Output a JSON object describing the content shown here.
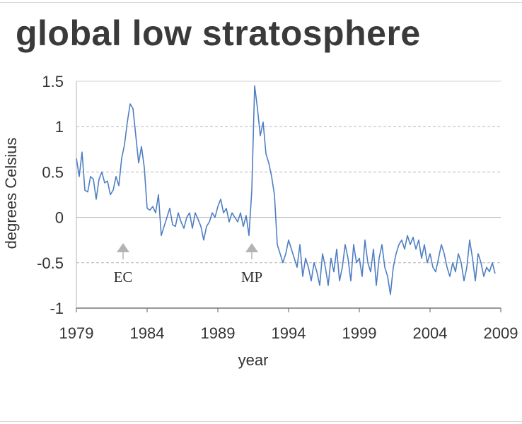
{
  "title": "global low stratosphere",
  "colors": {
    "series": "#4f7fc3",
    "grid": "#b5b5b5",
    "axis": "#777777",
    "marker": "#b3b3b3"
  },
  "chart_data": {
    "type": "line",
    "title": "global low stratosphere",
    "xlabel": "year",
    "ylabel": "degrees Celsius",
    "xlim": [
      1979,
      2009
    ],
    "ylim": [
      -1,
      1.5
    ],
    "x_ticks": [
      "1979",
      "1984",
      "1989",
      "1994",
      "1999",
      "2004",
      "2009"
    ],
    "y_ticks": [
      "1.5",
      "1",
      "0.5",
      "0",
      "-0.5",
      "-1"
    ],
    "grid": "horizontal dashed",
    "annotations": [
      {
        "label": "EC",
        "x": 1982.3
      },
      {
        "label": "MP",
        "x": 1991.4
      }
    ],
    "series": [
      {
        "x": [
          1979.0,
          1979.2,
          1979.4,
          1979.6,
          1979.8,
          1980.0,
          1980.2,
          1980.4,
          1980.6,
          1980.8,
          1981.0,
          1981.2,
          1981.4,
          1981.6,
          1981.8,
          1982.0,
          1982.2,
          1982.4,
          1982.6,
          1982.8,
          1983.0,
          1983.2,
          1983.4,
          1983.6,
          1983.8,
          1984.0,
          1984.2,
          1984.4,
          1984.6,
          1984.8,
          1985.0,
          1985.2,
          1985.4,
          1985.6,
          1985.8,
          1986.0,
          1986.2,
          1986.4,
          1986.6,
          1986.8,
          1987.0,
          1987.2,
          1987.4,
          1987.6,
          1987.8,
          1988.0,
          1988.2,
          1988.4,
          1988.6,
          1988.8,
          1989.0,
          1989.2,
          1989.4,
          1989.6,
          1989.8,
          1990.0,
          1990.2,
          1990.4,
          1990.6,
          1990.8,
          1991.0,
          1991.2,
          1991.4,
          1991.6,
          1991.8,
          1992.0,
          1992.2,
          1992.4,
          1992.6,
          1992.8,
          1993.0,
          1993.2,
          1993.4,
          1993.6,
          1993.8,
          1994.0,
          1994.2,
          1994.4,
          1994.6,
          1994.8,
          1995.0,
          1995.2,
          1995.4,
          1995.6,
          1995.8,
          1996.0,
          1996.2,
          1996.4,
          1996.6,
          1996.8,
          1997.0,
          1997.2,
          1997.4,
          1997.6,
          1997.8,
          1998.0,
          1998.2,
          1998.4,
          1998.6,
          1998.8,
          1999.0,
          1999.2,
          1999.4,
          1999.6,
          1999.8,
          2000.0,
          2000.2,
          2000.4,
          2000.6,
          2000.8,
          2001.0,
          2001.2,
          2001.4,
          2001.6,
          2001.8,
          2002.0,
          2002.2,
          2002.4,
          2002.6,
          2002.8,
          2003.0,
          2003.2,
          2003.4,
          2003.6,
          2003.8,
          2004.0,
          2004.2,
          2004.4,
          2004.6,
          2004.8,
          2005.0,
          2005.2,
          2005.4,
          2005.6,
          2005.8,
          2006.0,
          2006.2,
          2006.4,
          2006.6,
          2006.8,
          2007.0,
          2007.2,
          2007.4,
          2007.6,
          2007.8,
          2008.0,
          2008.2,
          2008.4,
          2008.6
        ],
        "y": [
          0.65,
          0.45,
          0.72,
          0.3,
          0.28,
          0.45,
          0.42,
          0.2,
          0.42,
          0.5,
          0.38,
          0.4,
          0.25,
          0.3,
          0.45,
          0.35,
          0.65,
          0.8,
          1.05,
          1.25,
          1.2,
          0.9,
          0.6,
          0.78,
          0.55,
          0.1,
          0.08,
          0.12,
          0.05,
          0.25,
          -0.2,
          -0.1,
          0.0,
          0.1,
          -0.08,
          -0.1,
          0.05,
          -0.05,
          -0.12,
          0.0,
          0.05,
          -0.12,
          0.05,
          -0.02,
          -0.1,
          -0.25,
          -0.1,
          -0.05,
          0.05,
          0.0,
          0.12,
          0.2,
          0.05,
          0.1,
          -0.05,
          0.05,
          0.0,
          -0.05,
          0.05,
          -0.1,
          0.02,
          -0.2,
          0.3,
          1.45,
          1.2,
          0.9,
          1.05,
          0.7,
          0.6,
          0.45,
          0.25,
          -0.3,
          -0.4,
          -0.5,
          -0.4,
          -0.25,
          -0.35,
          -0.45,
          -0.55,
          -0.3,
          -0.65,
          -0.45,
          -0.55,
          -0.7,
          -0.5,
          -0.6,
          -0.75,
          -0.4,
          -0.55,
          -0.75,
          -0.45,
          -0.6,
          -0.35,
          -0.7,
          -0.55,
          -0.3,
          -0.45,
          -0.7,
          -0.3,
          -0.5,
          -0.45,
          -0.65,
          -0.25,
          -0.5,
          -0.6,
          -0.35,
          -0.75,
          -0.45,
          -0.3,
          -0.55,
          -0.65,
          -0.85,
          -0.55,
          -0.4,
          -0.3,
          -0.25,
          -0.35,
          -0.2,
          -0.3,
          -0.22,
          -0.35,
          -0.25,
          -0.45,
          -0.3,
          -0.5,
          -0.4,
          -0.55,
          -0.6,
          -0.45,
          -0.3,
          -0.4,
          -0.55,
          -0.65,
          -0.5,
          -0.6,
          -0.4,
          -0.5,
          -0.7,
          -0.55,
          -0.25,
          -0.45,
          -0.7,
          -0.4,
          -0.5,
          -0.65,
          -0.55,
          -0.6,
          -0.5,
          -0.62
        ]
      }
    ]
  }
}
